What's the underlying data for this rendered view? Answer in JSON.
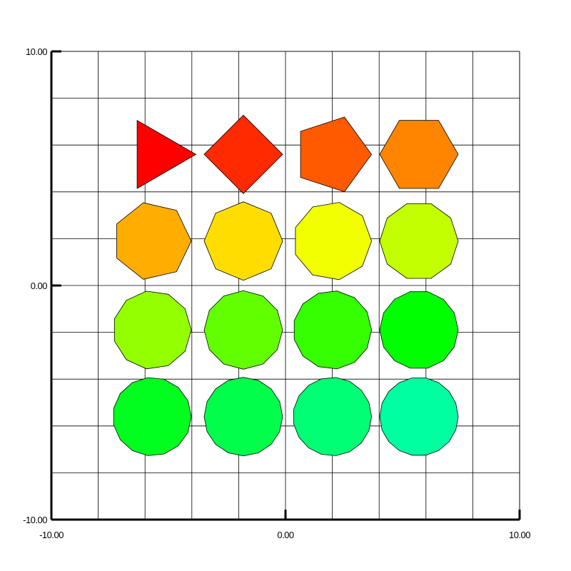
{
  "chart_data": {
    "type": "scatter",
    "title": "",
    "xlabel": "",
    "ylabel": "",
    "xlim": [
      -10,
      10
    ],
    "ylim": [
      -10,
      10
    ],
    "grid": true,
    "x_ticks": [
      "-10.00",
      "0.00",
      "10.00"
    ],
    "y_ticks": [
      "10.00",
      "0.00",
      "-10.00"
    ],
    "points": [
      {
        "x": -5.5,
        "y": 5.6,
        "sides": 3,
        "color": "#ff0000"
      },
      {
        "x": -1.8,
        "y": 5.6,
        "sides": 4,
        "color": "#ff2a00"
      },
      {
        "x": 2.0,
        "y": 5.6,
        "sides": 5,
        "color": "#ff5a00"
      },
      {
        "x": 5.7,
        "y": 5.6,
        "sides": 6,
        "color": "#ff8500"
      },
      {
        "x": -5.7,
        "y": 1.9,
        "sides": 7,
        "color": "#ffae00"
      },
      {
        "x": -1.8,
        "y": 1.9,
        "sides": 8,
        "color": "#ffdd00"
      },
      {
        "x": 2.0,
        "y": 1.9,
        "sides": 9,
        "color": "#f2ff00"
      },
      {
        "x": 5.7,
        "y": 1.9,
        "sides": 10,
        "color": "#c3ff00"
      },
      {
        "x": -5.7,
        "y": -1.9,
        "sides": 11,
        "color": "#93ff00"
      },
      {
        "x": -1.8,
        "y": -1.9,
        "sides": 12,
        "color": "#62ff00"
      },
      {
        "x": 2.0,
        "y": -1.9,
        "sides": 13,
        "color": "#35ff00"
      },
      {
        "x": 5.7,
        "y": -1.9,
        "sides": 14,
        "color": "#00ff00"
      },
      {
        "x": -5.7,
        "y": -5.6,
        "sides": 15,
        "color": "#00ff1e"
      },
      {
        "x": -1.8,
        "y": -5.6,
        "sides": 16,
        "color": "#00ff4a"
      },
      {
        "x": 2.0,
        "y": -5.6,
        "sides": 17,
        "color": "#00ff75"
      },
      {
        "x": 5.7,
        "y": -5.6,
        "sides": 18,
        "color": "#00ffa0"
      }
    ]
  }
}
